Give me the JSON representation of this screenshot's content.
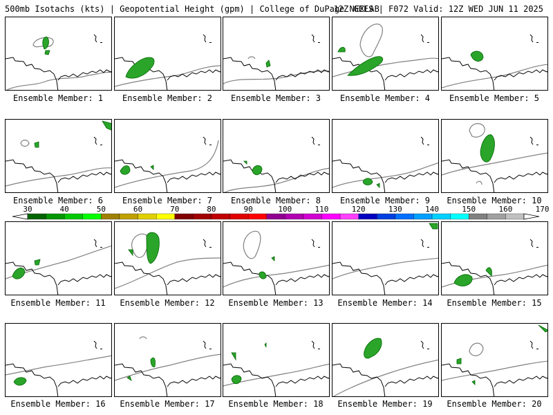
{
  "header": {
    "title_left": "500mb Isotachs (kts) | Geopotential Height (gpm) | College of DuPage NEXLAB",
    "title_right": "12Z GEFS | F072 Valid: 12Z WED JUN 11 2025"
  },
  "caption_prefix": "Ensemble Member: ",
  "members": [
    {
      "number": "1"
    },
    {
      "number": "2"
    },
    {
      "number": "3"
    },
    {
      "number": "4"
    },
    {
      "number": "5"
    },
    {
      "number": "6"
    },
    {
      "number": "7"
    },
    {
      "number": "8"
    },
    {
      "number": "9"
    },
    {
      "number": "10"
    },
    {
      "number": "11"
    },
    {
      "number": "12"
    },
    {
      "number": "13"
    },
    {
      "number": "14"
    },
    {
      "number": "15"
    },
    {
      "number": "16"
    },
    {
      "number": "17"
    },
    {
      "number": "18"
    },
    {
      "number": "19"
    },
    {
      "number": "20"
    }
  ],
  "colorbar": {
    "labels": [
      "30",
      "40",
      "50",
      "60",
      "70",
      "80",
      "90",
      "100",
      "110",
      "120",
      "130",
      "140",
      "150",
      "160",
      "170"
    ],
    "colors": [
      "#006400",
      "#009600",
      "#00c800",
      "#00ff00",
      "#a08000",
      "#c0a000",
      "#e0d000",
      "#ffff00",
      "#800000",
      "#a00000",
      "#c00000",
      "#e00000",
      "#ff0000",
      "#900090",
      "#b000b0",
      "#d000d0",
      "#ff00ff",
      "#ff40ff",
      "#0000c0",
      "#0040e0",
      "#0070ff",
      "#00a0ff",
      "#00d0ff",
      "#00ffff",
      "#808080",
      "#a0a0a0",
      "#c0c0c0"
    ]
  },
  "colors": {
    "coast": "#000000",
    "height_contour": "#808080",
    "isotach_fill": "#2aa52a",
    "isotach_edge": "#006400"
  }
}
